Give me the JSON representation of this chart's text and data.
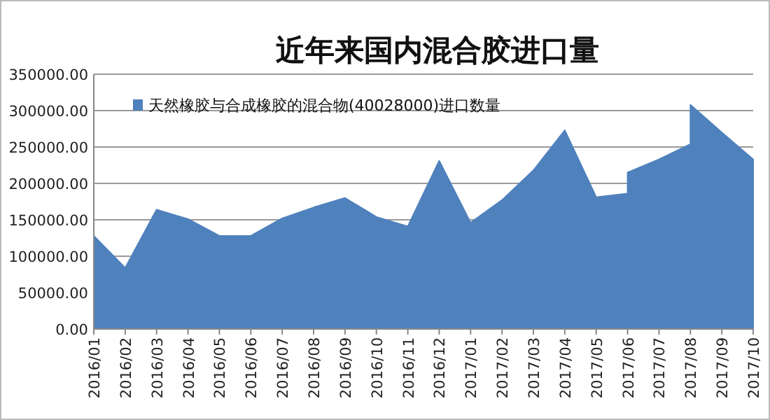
{
  "chart_data": {
    "type": "area",
    "title": "近年来国内混合胶进口量",
    "x": [
      "2016-01",
      "2016-02",
      "2016-03",
      "2016-04",
      "2016-05",
      "2016-06",
      "2016-07",
      "2016-08",
      "2016-09",
      "2016-10",
      "2016-11",
      "2016-12",
      "2017-01",
      "2017-02",
      "2017-03",
      "2017-04",
      "2017-05",
      "2017-06",
      "2017-06",
      "2017-07",
      "2017-08",
      "2017-08",
      "2017-09",
      "2017-10"
    ],
    "series": [
      {
        "name": "天然橡胶与合成橡胶的混合物(40028000)进口数量",
        "color": "#4f81bd",
        "values": [
          128000,
          84000,
          164000,
          151000,
          128000,
          128000,
          152000,
          167000,
          180000,
          154000,
          141000,
          231000,
          146000,
          177000,
          218000,
          273000,
          181000,
          186000,
          215000,
          233000,
          254000,
          308000,
          270000,
          233000
        ]
      }
    ],
    "xlim": [
      "2016-01",
      "2017-10"
    ],
    "xticks": [
      {
        "value": "2016-01",
        "label": "2016/01"
      },
      {
        "value": "2016-02",
        "label": "2016/02"
      },
      {
        "value": "2016-03",
        "label": "2016/03"
      },
      {
        "value": "2016-04",
        "label": "2016/04"
      },
      {
        "value": "2016-05",
        "label": "2016/05"
      },
      {
        "value": "2016-06",
        "label": "2016/06"
      },
      {
        "value": "2016-07",
        "label": "2016/07"
      },
      {
        "value": "2016-08",
        "label": "2016/08"
      },
      {
        "value": "2016-09",
        "label": "2016/09"
      },
      {
        "value": "2016-10",
        "label": "2016/10"
      },
      {
        "value": "2016-11",
        "label": "2016/11"
      },
      {
        "value": "2016-12",
        "label": "2016/12"
      },
      {
        "value": "2017-01",
        "label": "2017/01"
      },
      {
        "value": "2017-02",
        "label": "2017/02"
      },
      {
        "value": "2017-03",
        "label": "2017/03"
      },
      {
        "value": "2017-04",
        "label": "2017/04"
      },
      {
        "value": "2017-05",
        "label": "2017/05"
      },
      {
        "value": "2017-06",
        "label": "2017/06"
      },
      {
        "value": "2017-07",
        "label": "2017/07"
      },
      {
        "value": "2017-08",
        "label": "2017/08"
      },
      {
        "value": "2017-09",
        "label": "2017/09"
      },
      {
        "value": "2017-10",
        "label": "2017/10"
      }
    ],
    "ylim": [
      0,
      350000
    ],
    "yticks": [
      {
        "value": 0,
        "label": "0.00"
      },
      {
        "value": 50000,
        "label": "50000.00"
      },
      {
        "value": 100000,
        "label": "100000.00"
      },
      {
        "value": 150000,
        "label": "150000.00"
      },
      {
        "value": 200000,
        "label": "200000.00"
      },
      {
        "value": 250000,
        "label": "250000.00"
      },
      {
        "value": 300000,
        "label": "300000.00"
      },
      {
        "value": 350000,
        "label": "350000.00"
      }
    ],
    "grid": "y",
    "legend": "top left"
  }
}
